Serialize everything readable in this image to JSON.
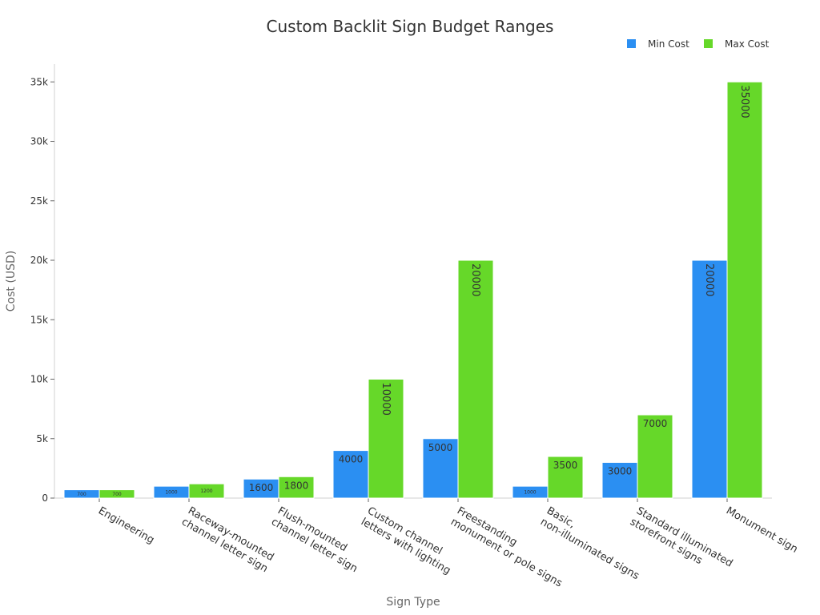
{
  "chart_data": {
    "type": "bar",
    "title": "Custom Backlit Sign Budget Ranges",
    "xlabel": "Sign Type",
    "ylabel": "Cost (USD)",
    "categories": [
      [
        "Engineering"
      ],
      [
        "Raceway-mounted",
        "channel letter sign"
      ],
      [
        "Flush-mounted",
        "channel letter sign"
      ],
      [
        "Custom channel",
        "letters with lighting"
      ],
      [
        "Freestanding",
        "monument or pole signs"
      ],
      [
        "Basic,",
        "non-illuminated signs"
      ],
      [
        "Standard illuminated",
        "storefront signs"
      ],
      [
        "Monument sign"
      ]
    ],
    "series": [
      {
        "name": "Min Cost",
        "color": "#2b8ff2",
        "values": [
          700,
          1000,
          1600,
          4000,
          5000,
          1000,
          3000,
          20000
        ]
      },
      {
        "name": "Max Cost",
        "color": "#66d829",
        "values": [
          700,
          1200,
          1800,
          10000,
          20000,
          3500,
          7000,
          35000
        ]
      }
    ],
    "ylim": [
      0,
      36500
    ],
    "yticks": [
      0,
      5000,
      10000,
      15000,
      20000,
      25000,
      30000,
      35000
    ],
    "ytick_labels": [
      "0",
      "5k",
      "10k",
      "15k",
      "20k",
      "25k",
      "30k",
      "35k"
    ],
    "legend_position": "top-right",
    "grid": false
  }
}
